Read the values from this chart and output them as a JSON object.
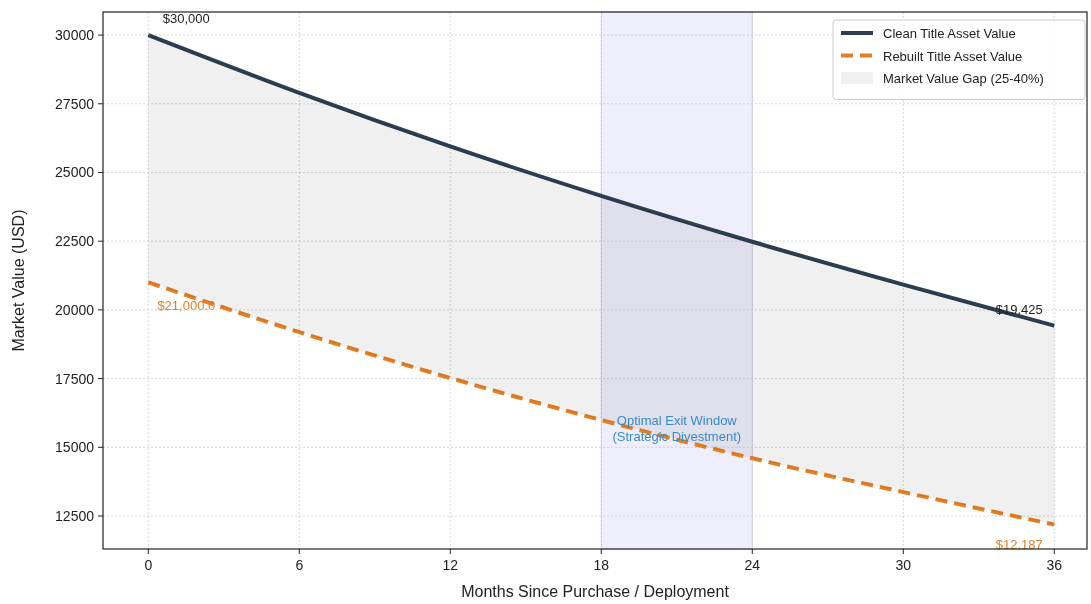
{
  "chart_data": {
    "type": "line",
    "xlabel": "Months Since Purchase / Deployment",
    "ylabel": "Market Value (USD)",
    "x": [
      0,
      6,
      12,
      18,
      24,
      30,
      36
    ],
    "series": [
      {
        "name": "Market Value Gap (25-40%)",
        "type": "area",
        "color": "#f0f0f0",
        "values": [
          null,
          null,
          null,
          null,
          null,
          null,
          null
        ],
        "upper": [
          30000,
          27900,
          25950,
          24150,
          22480,
          20920,
          19425
        ],
        "lower": [
          21000,
          19190,
          17520,
          15990,
          14600,
          13370,
          12187
        ]
      },
      {
        "name": "Clean Title Asset Value",
        "color": "#2c3e50",
        "line_style": "solid",
        "values": [
          30000,
          27900,
          25950,
          24150,
          22480,
          20920,
          19425
        ],
        "value_labels": [
          "$30,000",
          null,
          null,
          null,
          null,
          null,
          "$19,425"
        ]
      },
      {
        "name": "Rebuilt Title Asset Value",
        "color": "#e67e22",
        "line_style": "dashed",
        "values": [
          21000,
          19190,
          17520,
          15990,
          14600,
          13370,
          12187
        ],
        "value_labels": [
          "$21,000.0",
          null,
          null,
          null,
          null,
          null,
          "$12,187"
        ]
      }
    ],
    "bands": [
      {
        "axis": "x",
        "from": 18,
        "to": 24,
        "label": "Optimal Exit Window\n(Strategic Divestment)",
        "color": "#eeeefc"
      }
    ],
    "xlim": [
      -1.8,
      37.3
    ],
    "ylim": [
      11300,
      30840
    ],
    "xticks": [
      0,
      6,
      12,
      18,
      24,
      30,
      36
    ],
    "yticks": [
      12500,
      15000,
      17500,
      20000,
      22500,
      25000,
      27500,
      30000
    ],
    "grid": true,
    "legend": "top right"
  }
}
